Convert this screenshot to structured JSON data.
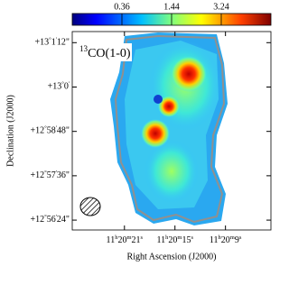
{
  "chart_data": {
    "type": "heatmap",
    "annotation": "13CO(1-0)",
    "xlabel": "Right Ascension (J2000)",
    "ylabel": "Declination (J2000)",
    "xlim": [
      27.2,
      3.6
    ],
    "xticks": [
      {
        "value": 21,
        "label": "11h20m21s"
      },
      {
        "value": 15,
        "label": "11h20m15s"
      },
      {
        "value": 9,
        "label": "11h20m9s"
      }
    ],
    "ylim": [
      8,
      330
    ],
    "yticks": [
      {
        "value": 24,
        "label": "+12°56'24\""
      },
      {
        "value": 96,
        "label": "+12°57'36\""
      },
      {
        "value": 168,
        "label": "+12°58'48\""
      },
      {
        "value": 240,
        "label": "+13°0'"
      },
      {
        "value": 312,
        "label": "+13°1'12\""
      }
    ],
    "colorbar": {
      "scale": "sqrt",
      "lim": [
        0,
        5.76
      ],
      "ticks": [
        0.36,
        1.44,
        3.24
      ]
    }
  }
}
